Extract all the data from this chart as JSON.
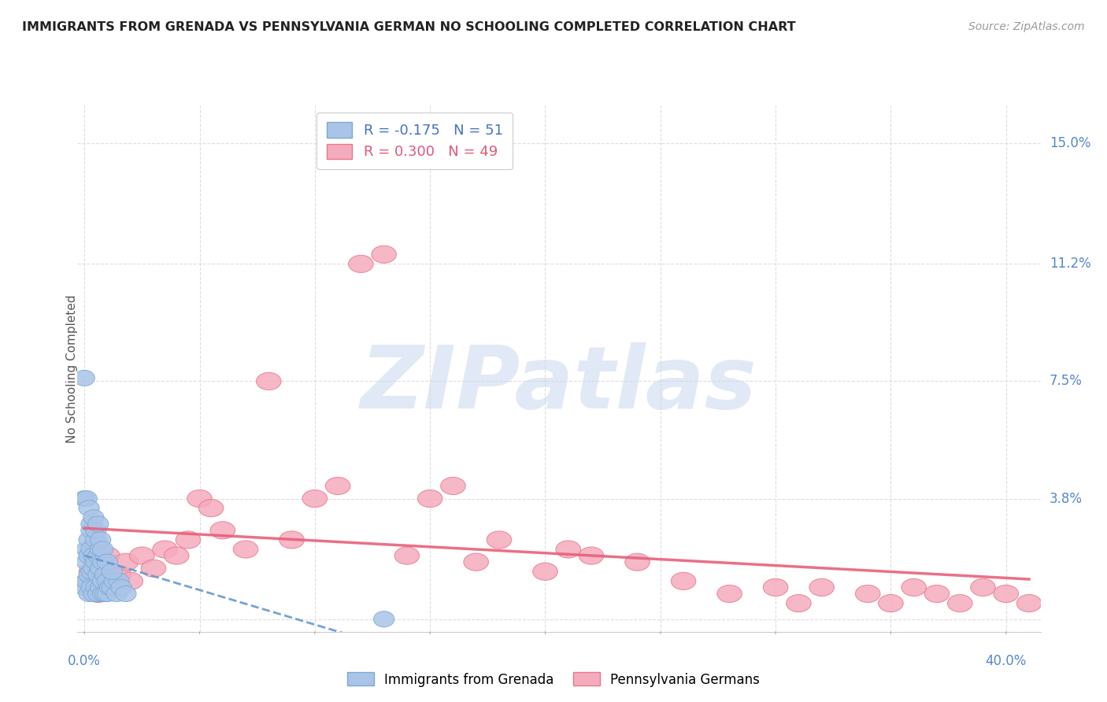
{
  "title": "IMMIGRANTS FROM GRENADA VS PENNSYLVANIA GERMAN NO SCHOOLING COMPLETED CORRELATION CHART",
  "source": "Source: ZipAtlas.com",
  "ylabel": "No Schooling Completed",
  "yticks": [
    0.0,
    0.038,
    0.075,
    0.112,
    0.15
  ],
  "ytick_labels": [
    "",
    "3.8%",
    "7.5%",
    "11.2%",
    "15.0%"
  ],
  "xlim": [
    -0.003,
    0.415
  ],
  "ylim": [
    -0.004,
    0.162
  ],
  "blue_R": -0.175,
  "blue_N": 51,
  "pink_R": 0.3,
  "pink_N": 49,
  "blue_label": "Immigrants from Grenada",
  "pink_label": "Pennsylvania Germans",
  "blue_color": "#aac4e8",
  "pink_color": "#f5abbe",
  "blue_edge": "#7aaad4",
  "pink_edge": "#e8788a",
  "trend_blue_color": "#6699cc",
  "trend_pink_color": "#e8607a",
  "watermark": "ZIPatlas",
  "background_color": "#ffffff",
  "grid_color": "#dddddd",
  "tick_color": "#5588cc",
  "blue_scatter_x": [
    0.0,
    0.001,
    0.001,
    0.001,
    0.002,
    0.002,
    0.002,
    0.002,
    0.003,
    0.003,
    0.003,
    0.003,
    0.004,
    0.004,
    0.004,
    0.005,
    0.005,
    0.005,
    0.006,
    0.006,
    0.006,
    0.007,
    0.007,
    0.007,
    0.008,
    0.008,
    0.008,
    0.009,
    0.009,
    0.01,
    0.01,
    0.011,
    0.012,
    0.013,
    0.014,
    0.015,
    0.016,
    0.018,
    0.0,
    0.001,
    0.002,
    0.003,
    0.004,
    0.005,
    0.006,
    0.007,
    0.008,
    0.01,
    0.012,
    0.13,
    0.0
  ],
  "blue_scatter_y": [
    0.01,
    0.012,
    0.018,
    0.022,
    0.008,
    0.014,
    0.02,
    0.025,
    0.01,
    0.015,
    0.022,
    0.028,
    0.008,
    0.016,
    0.02,
    0.01,
    0.018,
    0.025,
    0.008,
    0.014,
    0.02,
    0.01,
    0.016,
    0.022,
    0.008,
    0.012,
    0.018,
    0.008,
    0.014,
    0.008,
    0.012,
    0.01,
    0.01,
    0.012,
    0.008,
    0.012,
    0.01,
    0.008,
    0.038,
    0.038,
    0.035,
    0.03,
    0.032,
    0.028,
    0.03,
    0.025,
    0.022,
    0.018,
    0.015,
    0.0,
    0.076
  ],
  "pink_scatter_x": [
    0.002,
    0.003,
    0.004,
    0.005,
    0.006,
    0.007,
    0.008,
    0.01,
    0.012,
    0.015,
    0.018,
    0.02,
    0.025,
    0.03,
    0.035,
    0.04,
    0.045,
    0.05,
    0.055,
    0.06,
    0.07,
    0.08,
    0.09,
    0.1,
    0.11,
    0.12,
    0.13,
    0.14,
    0.15,
    0.16,
    0.17,
    0.18,
    0.2,
    0.21,
    0.22,
    0.24,
    0.26,
    0.28,
    0.3,
    0.31,
    0.32,
    0.34,
    0.35,
    0.36,
    0.37,
    0.38,
    0.39,
    0.4,
    0.41
  ],
  "pink_scatter_y": [
    0.012,
    0.015,
    0.01,
    0.018,
    0.008,
    0.012,
    0.015,
    0.02,
    0.01,
    0.014,
    0.018,
    0.012,
    0.02,
    0.016,
    0.022,
    0.02,
    0.025,
    0.038,
    0.035,
    0.028,
    0.022,
    0.075,
    0.025,
    0.038,
    0.042,
    0.112,
    0.115,
    0.02,
    0.038,
    0.042,
    0.018,
    0.025,
    0.015,
    0.022,
    0.02,
    0.018,
    0.012,
    0.008,
    0.01,
    0.005,
    0.01,
    0.008,
    0.005,
    0.01,
    0.008,
    0.005,
    0.01,
    0.008,
    0.005
  ]
}
